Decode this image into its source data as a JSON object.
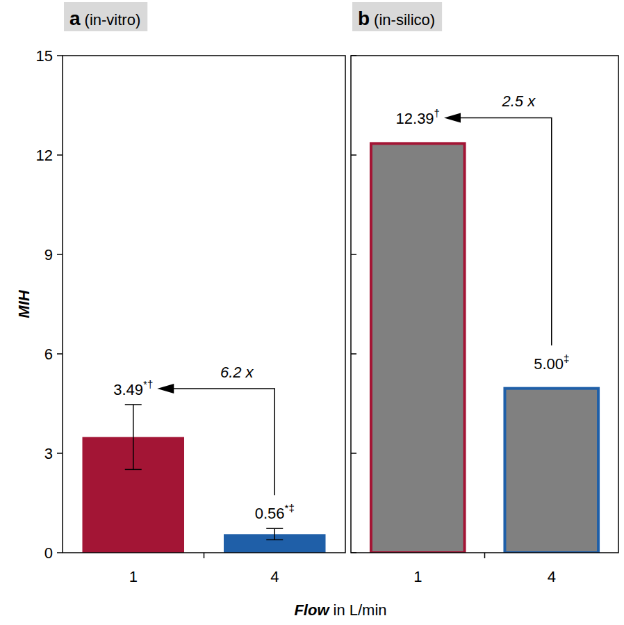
{
  "chart_data": [
    {
      "type": "bar",
      "title": "a",
      "subtitle": "(in-vitro)",
      "ylabel": "MIH",
      "xlabel": "Flow in L/min",
      "categories": [
        "1",
        "4"
      ],
      "values": [
        3.49,
        0.56
      ],
      "errors": [
        0.98,
        0.17
      ],
      "value_labels": [
        "3.49*†",
        "0.56*‡"
      ],
      "data_labels": true,
      "colors": [
        "#a31535",
        "#1f5fa8"
      ],
      "annotations": [
        {
          "text": "6.2 x"
        }
      ],
      "ylim": [
        0,
        15
      ],
      "yticks": [
        0,
        3,
        6,
        9,
        12,
        15
      ],
      "grid": false
    },
    {
      "type": "bar",
      "title": "b",
      "subtitle": "(in-silico)",
      "categories": [
        "1",
        "4"
      ],
      "values": [
        12.39,
        5.0
      ],
      "value_labels": [
        "12.39†",
        "5.00‡"
      ],
      "data_labels": true,
      "color": "#808080",
      "colors": [
        "#a31535",
        "#1f5fa8"
      ],
      "annotations": [
        {
          "text": "2.5 x"
        }
      ],
      "ylim": [
        0,
        15
      ],
      "yticks": [
        0,
        3,
        6,
        9,
        12,
        15
      ],
      "grid": false,
      "tick_labels": "x"
    }
  ]
}
